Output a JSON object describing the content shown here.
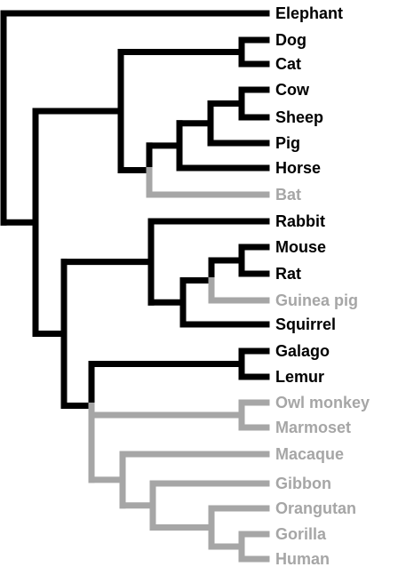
{
  "colors": {
    "highlight": "#000000",
    "other": "#a6a6a6",
    "background": "#ffffff"
  },
  "tree": {
    "leaves": [
      {
        "name": "Elephant",
        "highlight": true
      },
      {
        "name": "Dog",
        "highlight": true
      },
      {
        "name": "Cat",
        "highlight": true
      },
      {
        "name": "Cow",
        "highlight": true
      },
      {
        "name": "Sheep",
        "highlight": true
      },
      {
        "name": "Pig",
        "highlight": true
      },
      {
        "name": "Horse",
        "highlight": true
      },
      {
        "name": "Bat",
        "highlight": false
      },
      {
        "name": "Rabbit",
        "highlight": true
      },
      {
        "name": "Mouse",
        "highlight": true
      },
      {
        "name": "Rat",
        "highlight": true
      },
      {
        "name": "Guinea pig",
        "highlight": false
      },
      {
        "name": "Squirrel",
        "highlight": true
      },
      {
        "name": "Galago",
        "highlight": true
      },
      {
        "name": "Lemur",
        "highlight": true
      },
      {
        "name": "Owl monkey",
        "highlight": false
      },
      {
        "name": "Marmoset",
        "highlight": false
      },
      {
        "name": "Macaque",
        "highlight": false
      },
      {
        "name": "Gibbon",
        "highlight": false
      },
      {
        "name": "Orangutan",
        "highlight": false
      },
      {
        "name": "Gorilla",
        "highlight": false
      },
      {
        "name": "Human",
        "highlight": false
      }
    ],
    "topology": "(Elephant,((Dog,Cat),((((Cow,Sheep),Pig),Horse),Bat)),((Rabbit,(((Mouse,Rat),Guinea pig),Squirrel)),((Galago,Lemur),((Owl monkey,Marmoset),(Macaque,(Gibbon,(Orangutan,(Gorilla,Human))))))))"
  }
}
